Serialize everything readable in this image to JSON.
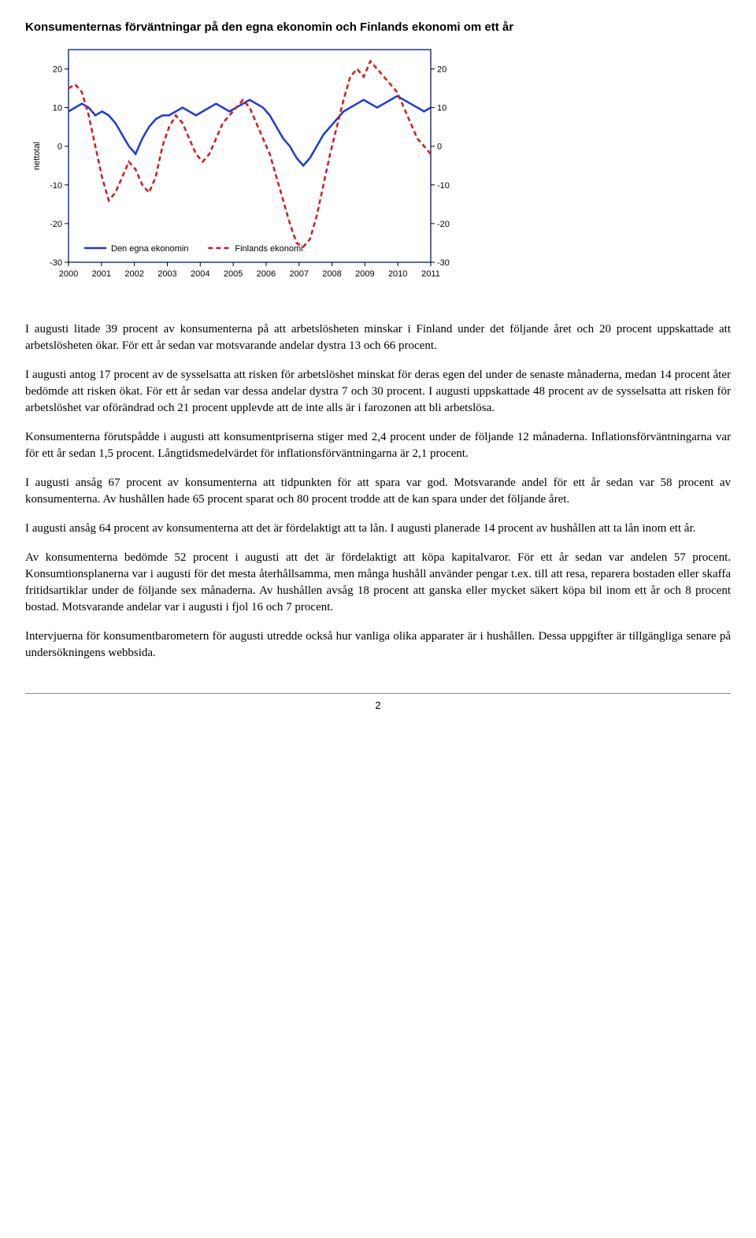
{
  "title": "Konsumenternas förväntningar på den egna ekonomin och Finlands ekonomi om ett år",
  "chart": {
    "type": "line",
    "ylabel": "nettotal",
    "x_categories": [
      "2000",
      "2001",
      "2002",
      "2003",
      "2004",
      "2005",
      "2006",
      "2007",
      "2008",
      "2009",
      "2010",
      "2011"
    ],
    "ylim": [
      -30,
      25
    ],
    "yticks_left": [
      -30,
      -20,
      -10,
      0,
      10,
      20
    ],
    "yticks_right": [
      -30,
      -20,
      -10,
      0,
      10,
      20
    ],
    "background_color": "#ffffff",
    "border_color": "#1a3a8a",
    "grid": false,
    "legend_items": [
      {
        "label": "Den egna ekonomin",
        "color": "#1a3ae0",
        "dash": "solid"
      },
      {
        "label": "Finlands ekonomi",
        "color": "#d01a1a",
        "dash": "dashed"
      }
    ],
    "series": [
      {
        "name": "own_economy",
        "color": "#1a3ae0",
        "stroke_width": 2.5,
        "dash": "solid",
        "y": [
          9,
          10,
          11,
          10,
          8,
          9,
          8,
          6,
          3,
          0,
          -2,
          2,
          5,
          7,
          8,
          8,
          9,
          10,
          9,
          8,
          9,
          10,
          11,
          10,
          9,
          10,
          11,
          12,
          11,
          10,
          8,
          5,
          2,
          0,
          -3,
          -5,
          -3,
          0,
          3,
          5,
          7,
          9,
          10,
          11,
          12,
          11,
          10,
          11,
          12,
          13,
          12,
          11,
          10,
          9,
          10
        ]
      },
      {
        "name": "finland_economy",
        "color": "#d01a1a",
        "stroke_width": 2.5,
        "dash": "6 4",
        "y": [
          15,
          16,
          14,
          8,
          0,
          -8,
          -14,
          -12,
          -8,
          -4,
          -6,
          -10,
          -12,
          -8,
          0,
          5,
          8,
          6,
          2,
          -2,
          -4,
          -2,
          2,
          6,
          8,
          10,
          12,
          10,
          6,
          2,
          -2,
          -8,
          -14,
          -20,
          -25,
          -26,
          -24,
          -18,
          -10,
          -2,
          5,
          12,
          18,
          20,
          18,
          22,
          20,
          18,
          16,
          14,
          10,
          6,
          2,
          0,
          -2
        ]
      }
    ]
  },
  "paragraphs": {
    "p1": "I augusti litade 39 procent av konsumenterna på att arbetslösheten minskar i Finland under det följande året och 20 procent uppskattade att arbetslösheten ökar. För ett år sedan var motsvarande andelar dystra 13 och 66 procent.",
    "p2": "I augusti antog 17 procent av de sysselsatta att risken för arbetslöshet minskat för deras egen del under de senaste månaderna, medan 14 procent åter bedömde att risken ökat. För ett år sedan var dessa andelar dystra 7 och 30 procent. I augusti uppskattade 48 procent av de sysselsatta att risken för arbetslöshet var oförändrad och 21 procent upplevde att de inte alls är i farozonen att bli arbetslösa.",
    "p3": "Konsumenterna förutspådde i augusti att konsumentpriserna stiger med 2,4 procent under de följande 12 månaderna. Inflationsförväntningarna var för ett år sedan 1,5 procent. Långtidsmedelvärdet för inflationsförväntningarna är 2,1 procent.",
    "p4": "I augusti ansåg 67 procent av konsumenterna att tidpunkten för att spara var god. Motsvarande andel för ett år sedan var 58 procent av konsumenterna. Av hushållen hade 65 procent sparat och 80 procent trodde att de kan spara under det följande året.",
    "p5": "I augusti ansåg 64 procent av konsumenterna att det är fördelaktigt att ta lån. I augusti planerade 14 procent av hushållen att ta lån inom ett år.",
    "p6": "Av konsumenterna bedömde 52 procent i augusti att det är fördelaktigt att köpa kapitalvaror. För ett år sedan var andelen 57 procent. Konsumtionsplanerna var i augusti för det mesta återhållsamma, men många hushåll använder pengar t.ex. till att resa, reparera bostaden eller skaffa fritidsartiklar under de följande sex månaderna. Av hushållen avsåg 18 procent att ganska eller mycket säkert köpa bil inom ett år och 8 procent bostad. Motsvarande andelar var i augusti i fjol 16 och 7 procent.",
    "p7": "Intervjuerna för konsumentbarometern för augusti utredde också hur vanliga olika apparater är i hushållen. Dessa uppgifter är tillgängliga senare på undersökningens webbsida."
  },
  "page_number": "2"
}
